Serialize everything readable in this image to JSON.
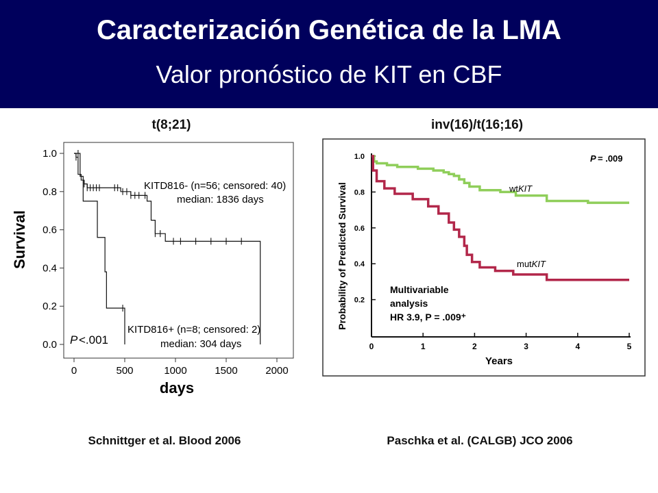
{
  "header": {
    "title": "Caracterización Genética de la LMA",
    "subtitle": "Valor pronóstico de KIT en CBF"
  },
  "colors": {
    "header_bg": "#00005c",
    "wtKIT": "#8fce5a",
    "mutKIT": "#b2274a"
  },
  "left": {
    "panel_title": "t(8;21)",
    "citation": "Schnittger et al. Blood 2006"
  },
  "right": {
    "panel_title": "inv(16)/t(16;16)",
    "citation": "Paschka et al. (CALGB) JCO 2006"
  },
  "chart_data": [
    {
      "type": "line",
      "subtype": "kaplan-meier",
      "title": "",
      "xlabel": "days",
      "ylabel": "Survival",
      "xlim": [
        0,
        2000
      ],
      "ylim": [
        0,
        1.0
      ],
      "xticks": [
        "0",
        "500",
        "1000",
        "1500",
        "2000"
      ],
      "yticks": [
        "0.0",
        "0.2",
        "0.4",
        "0.6",
        "0.8",
        "1.0"
      ],
      "p_value_label": "P",
      "p_value": "<.001",
      "series": [
        {
          "name": "KITD816- (n=56; censored: 40)",
          "label_line2": "median: 1836 days",
          "steps": [
            [
              0,
              1.0
            ],
            [
              20,
              0.98
            ],
            [
              40,
              0.89
            ],
            [
              70,
              0.86
            ],
            [
              100,
              0.84
            ],
            [
              130,
              0.82
            ],
            [
              200,
              0.82
            ],
            [
              450,
              0.82
            ],
            [
              460,
              0.8
            ],
            [
              560,
              0.78
            ],
            [
              720,
              0.75
            ],
            [
              760,
              0.65
            ],
            [
              800,
              0.58
            ],
            [
              900,
              0.54
            ],
            [
              1836,
              0.54
            ],
            [
              1836,
              0.0
            ]
          ],
          "censor_x": [
            20,
            100,
            130,
            160,
            190,
            220,
            250,
            400,
            430,
            480,
            520,
            560,
            600,
            640,
            700,
            800,
            850,
            980,
            1050,
            1200,
            1350,
            1500,
            1650
          ]
        },
        {
          "name": "KITD816+ (n=8; censored: 2)",
          "label_line2": "median: 304 days",
          "steps": [
            [
              0,
              1.0
            ],
            [
              60,
              0.88
            ],
            [
              90,
              0.75
            ],
            [
              230,
              0.56
            ],
            [
              305,
              0.38
            ],
            [
              320,
              0.19
            ],
            [
              500,
              0.19
            ],
            [
              500,
              0.0
            ]
          ],
          "censor_x": [
            40,
            480
          ]
        }
      ]
    },
    {
      "type": "line",
      "subtype": "kaplan-meier",
      "title": "",
      "xlabel": "Years",
      "ylabel": "Probability of Predicted Survival",
      "xlim": [
        0,
        5
      ],
      "ylim": [
        0,
        1.0
      ],
      "xticks": [
        "0",
        "1",
        "2",
        "3",
        "4",
        "5"
      ],
      "yticks": [
        "0.2",
        "0.4",
        "0.6",
        "0.8",
        "1.0"
      ],
      "p_value_label": "P",
      "p_value": "= .009",
      "annotation": [
        "Multivariable",
        "analysis",
        "HR 3.9, P = .009⁺"
      ],
      "series": [
        {
          "name": "wtKIT",
          "name_prefix": "wt",
          "name_gene": "KIT",
          "color": "#8fce5a",
          "steps": [
            [
              0,
              1.0
            ],
            [
              0.05,
              0.97
            ],
            [
              0.1,
              0.96
            ],
            [
              0.3,
              0.95
            ],
            [
              0.5,
              0.94
            ],
            [
              0.9,
              0.93
            ],
            [
              1.2,
              0.92
            ],
            [
              1.4,
              0.91
            ],
            [
              1.5,
              0.9
            ],
            [
              1.6,
              0.89
            ],
            [
              1.7,
              0.87
            ],
            [
              1.8,
              0.85
            ],
            [
              1.9,
              0.83
            ],
            [
              2.1,
              0.81
            ],
            [
              2.5,
              0.8
            ],
            [
              2.8,
              0.78
            ],
            [
              3.4,
              0.75
            ],
            [
              4.2,
              0.74
            ],
            [
              5.0,
              0.74
            ]
          ]
        },
        {
          "name": "mutKIT",
          "name_prefix": "mut",
          "name_gene": "KIT",
          "color": "#b2274a",
          "steps": [
            [
              0,
              1.0
            ],
            [
              0.03,
              0.92
            ],
            [
              0.1,
              0.86
            ],
            [
              0.25,
              0.82
            ],
            [
              0.45,
              0.79
            ],
            [
              0.8,
              0.76
            ],
            [
              1.1,
              0.72
            ],
            [
              1.3,
              0.68
            ],
            [
              1.5,
              0.63
            ],
            [
              1.6,
              0.59
            ],
            [
              1.7,
              0.55
            ],
            [
              1.8,
              0.5
            ],
            [
              1.85,
              0.45
            ],
            [
              1.95,
              0.41
            ],
            [
              2.1,
              0.38
            ],
            [
              2.4,
              0.36
            ],
            [
              2.75,
              0.34
            ],
            [
              3.4,
              0.31
            ],
            [
              4.0,
              0.31
            ],
            [
              5.0,
              0.31
            ]
          ]
        }
      ]
    }
  ]
}
